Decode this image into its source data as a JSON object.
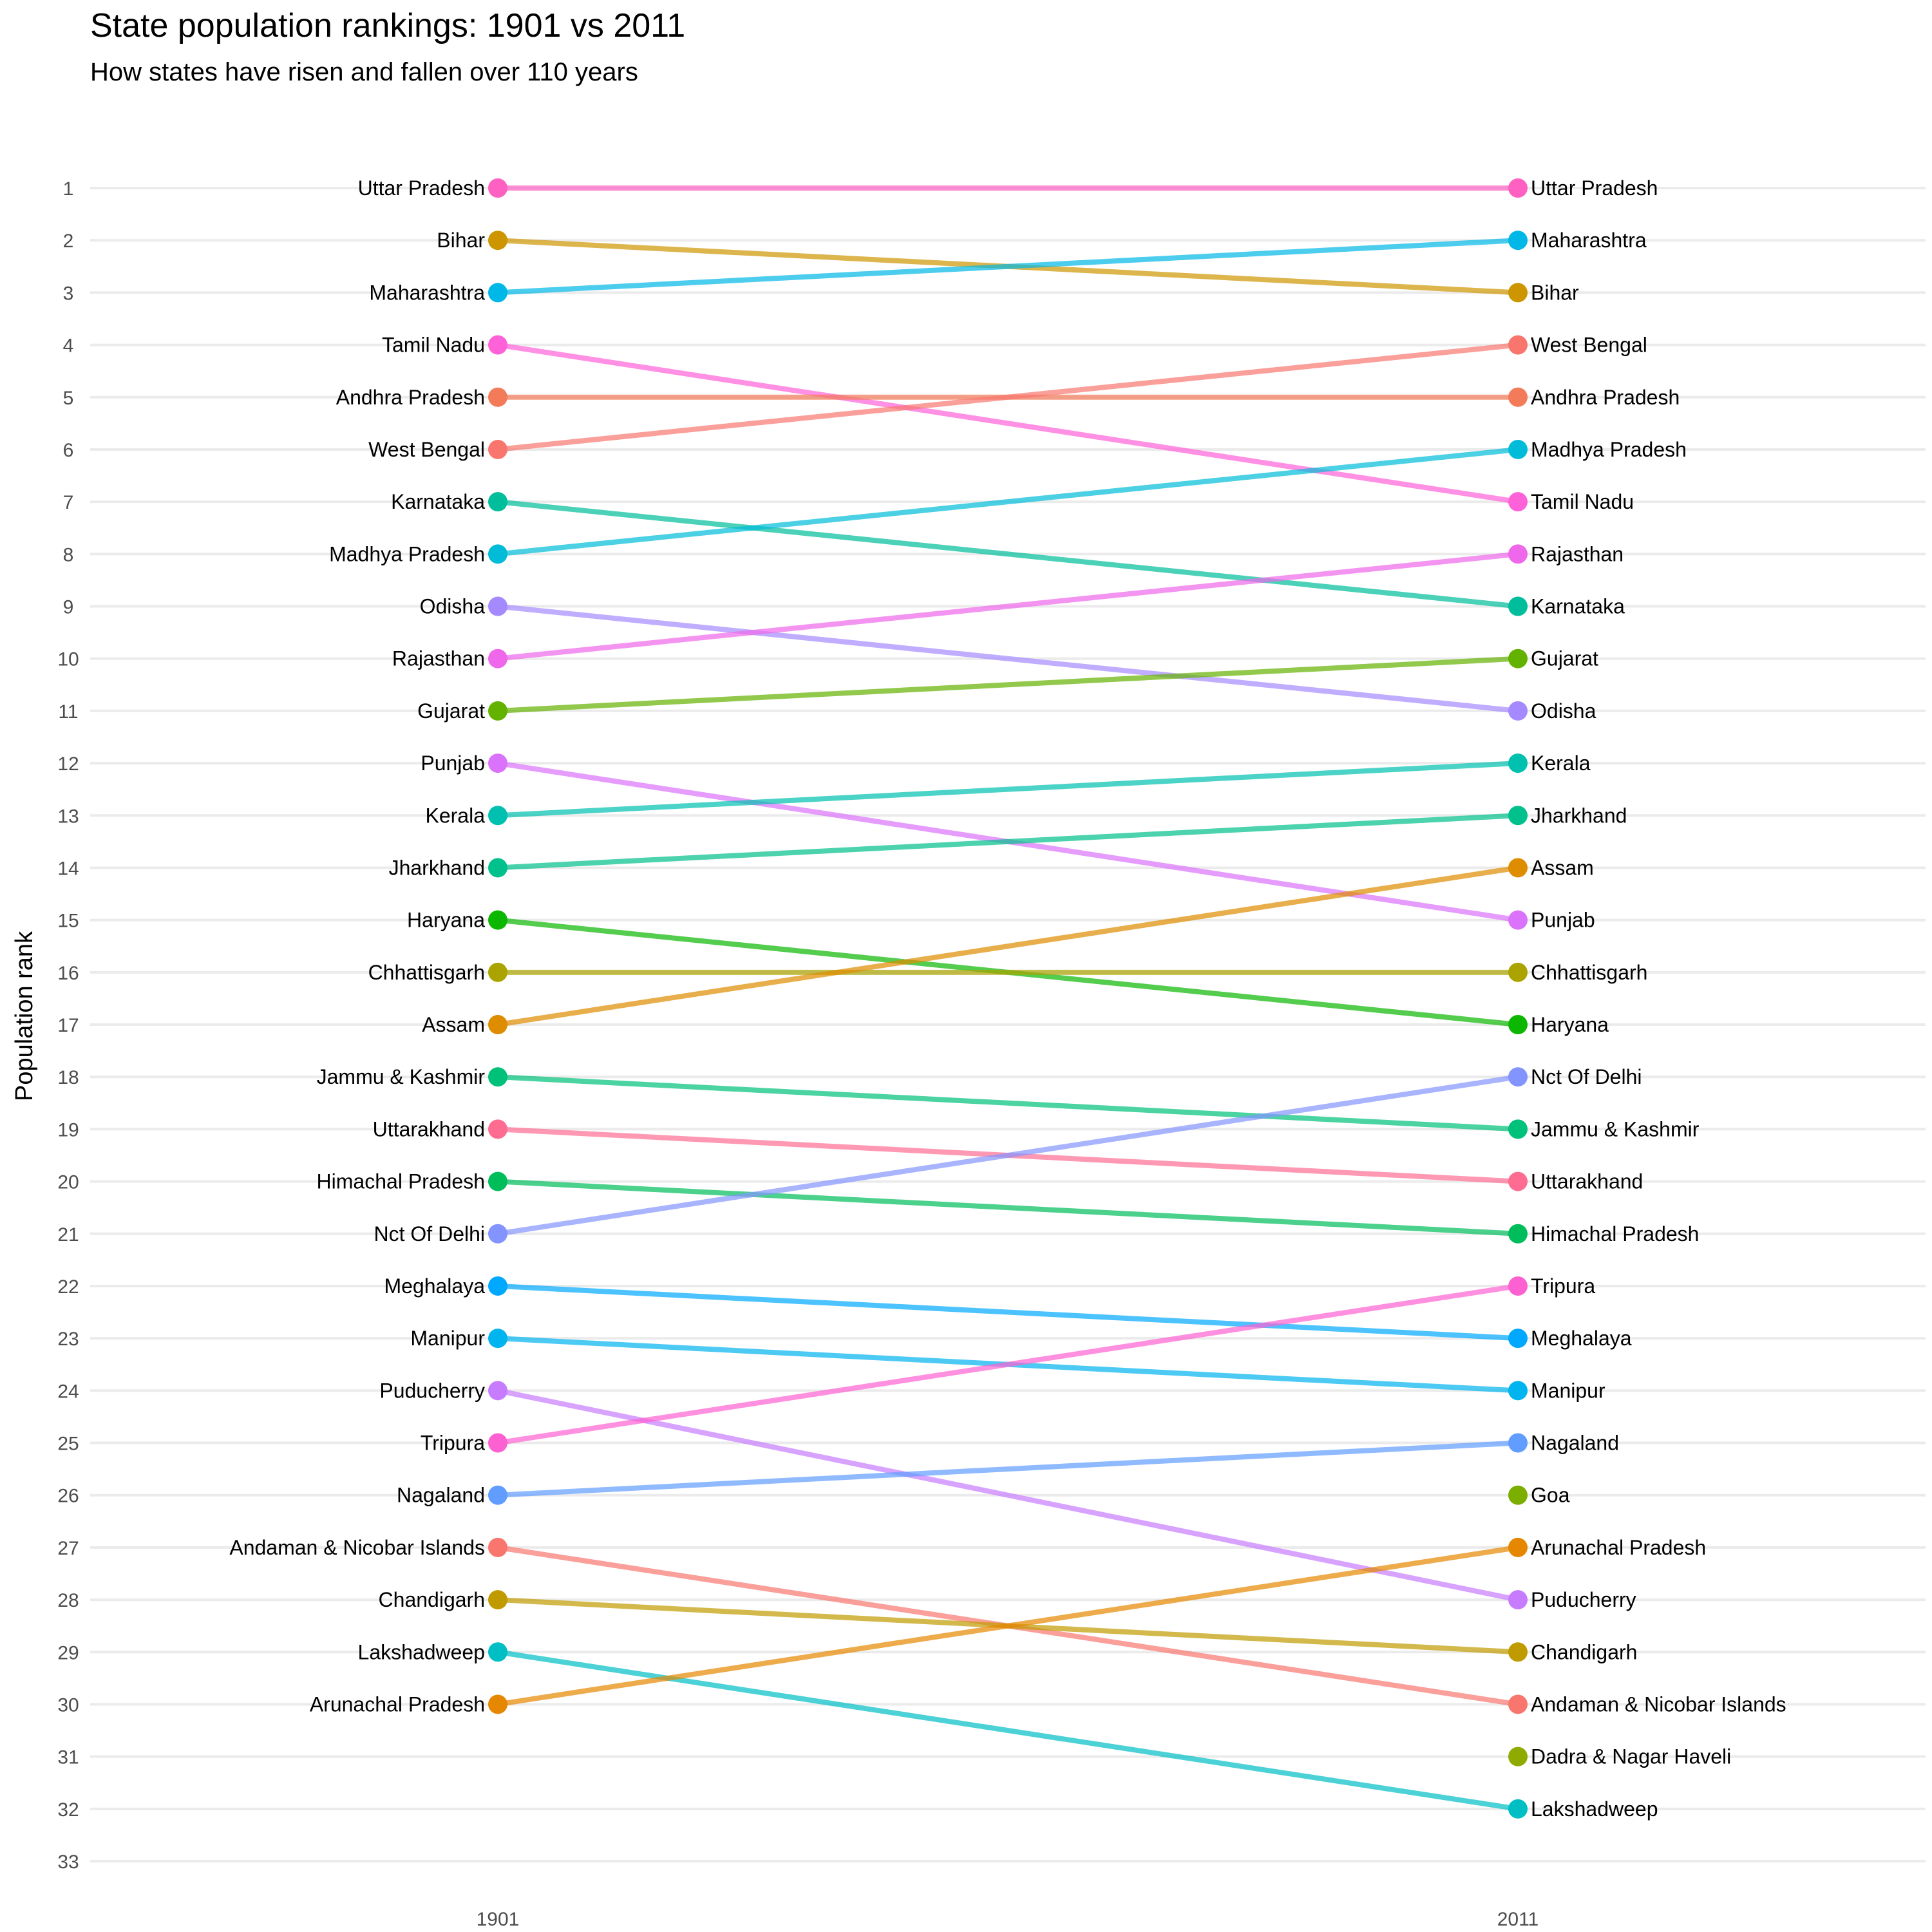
{
  "chart_data": {
    "type": "line",
    "subtype": "slopegraph",
    "title": "State population rankings: 1901 vs 2011",
    "subtitle": "How states have risen and fallen over 110 years",
    "xlabel": "",
    "ylabel": "Population rank",
    "categories": [
      "1901",
      "2011"
    ],
    "y_ticks": [
      1,
      2,
      3,
      4,
      5,
      6,
      7,
      8,
      9,
      10,
      11,
      12,
      13,
      14,
      15,
      16,
      17,
      18,
      19,
      20,
      21,
      22,
      23,
      24,
      25,
      26,
      27,
      28,
      29,
      30,
      31,
      32,
      33
    ],
    "ylim": [
      1,
      33
    ],
    "y_reversed": true,
    "grid": "horizontal",
    "series": [
      {
        "name": "Uttar Pradesh",
        "values": [
          1,
          1
        ],
        "color": "#FF61C3"
      },
      {
        "name": "Bihar",
        "values": [
          2,
          3
        ],
        "color": "#CD9600"
      },
      {
        "name": "Maharashtra",
        "values": [
          3,
          2
        ],
        "color": "#00B8E7"
      },
      {
        "name": "Tamil Nadu",
        "values": [
          4,
          7
        ],
        "color": "#FF61D8"
      },
      {
        "name": "Andhra Pradesh",
        "values": [
          5,
          5
        ],
        "color": "#F37B59"
      },
      {
        "name": "West Bengal",
        "values": [
          6,
          4
        ],
        "color": "#F8766D"
      },
      {
        "name": "Karnataka",
        "values": [
          7,
          9
        ],
        "color": "#00BE9B"
      },
      {
        "name": "Madhya Pradesh",
        "values": [
          8,
          6
        ],
        "color": "#00BCD8"
      },
      {
        "name": "Odisha",
        "values": [
          9,
          11
        ],
        "color": "#A58AFF"
      },
      {
        "name": "Rajasthan",
        "values": [
          10,
          8
        ],
        "color": "#EF67EB"
      },
      {
        "name": "Gujarat",
        "values": [
          11,
          10
        ],
        "color": "#64B200"
      },
      {
        "name": "Punjab",
        "values": [
          12,
          15
        ],
        "color": "#DB72FB"
      },
      {
        "name": "Kerala",
        "values": [
          13,
          12
        ],
        "color": "#00C0B0"
      },
      {
        "name": "Jharkhand",
        "values": [
          14,
          13
        ],
        "color": "#00C08B"
      },
      {
        "name": "Haryana",
        "values": [
          15,
          17
        ],
        "color": "#0CB702"
      },
      {
        "name": "Chhattisgarh",
        "values": [
          16,
          16
        ],
        "color": "#ABA300"
      },
      {
        "name": "Assam",
        "values": [
          17,
          14
        ],
        "color": "#DE8C00"
      },
      {
        "name": "Jammu & Kashmir",
        "values": [
          18,
          19
        ],
        "color": "#00C17A"
      },
      {
        "name": "Uttarakhand",
        "values": [
          19,
          20
        ],
        "color": "#FF6C91"
      },
      {
        "name": "Himachal Pradesh",
        "values": [
          20,
          21
        ],
        "color": "#00BD5C"
      },
      {
        "name": "Nct Of Delhi",
        "values": [
          21,
          18
        ],
        "color": "#8494FF"
      },
      {
        "name": "Meghalaya",
        "values": [
          22,
          23
        ],
        "color": "#00A9FF"
      },
      {
        "name": "Manipur",
        "values": [
          23,
          24
        ],
        "color": "#00B4F0"
      },
      {
        "name": "Puducherry",
        "values": [
          24,
          28
        ],
        "color": "#C77CFF"
      },
      {
        "name": "Tripura",
        "values": [
          25,
          22
        ],
        "color": "#FD61D1"
      },
      {
        "name": "Nagaland",
        "values": [
          26,
          25
        ],
        "color": "#619CFF"
      },
      {
        "name": "Andaman & Nicobar Islands",
        "values": [
          27,
          30
        ],
        "color": "#F8766D"
      },
      {
        "name": "Chandigarh",
        "values": [
          28,
          29
        ],
        "color": "#C09B00"
      },
      {
        "name": "Lakshadweep",
        "values": [
          29,
          32
        ],
        "color": "#00BFC4"
      },
      {
        "name": "Arunachal Pradesh",
        "values": [
          30,
          27
        ],
        "color": "#E58700"
      },
      {
        "name": "Goa",
        "values": [
          null,
          26
        ],
        "color": "#7CAE00"
      },
      {
        "name": "Dadra & Nagar Haveli",
        "values": [
          null,
          31
        ],
        "color": "#8FAA00"
      }
    ]
  }
}
